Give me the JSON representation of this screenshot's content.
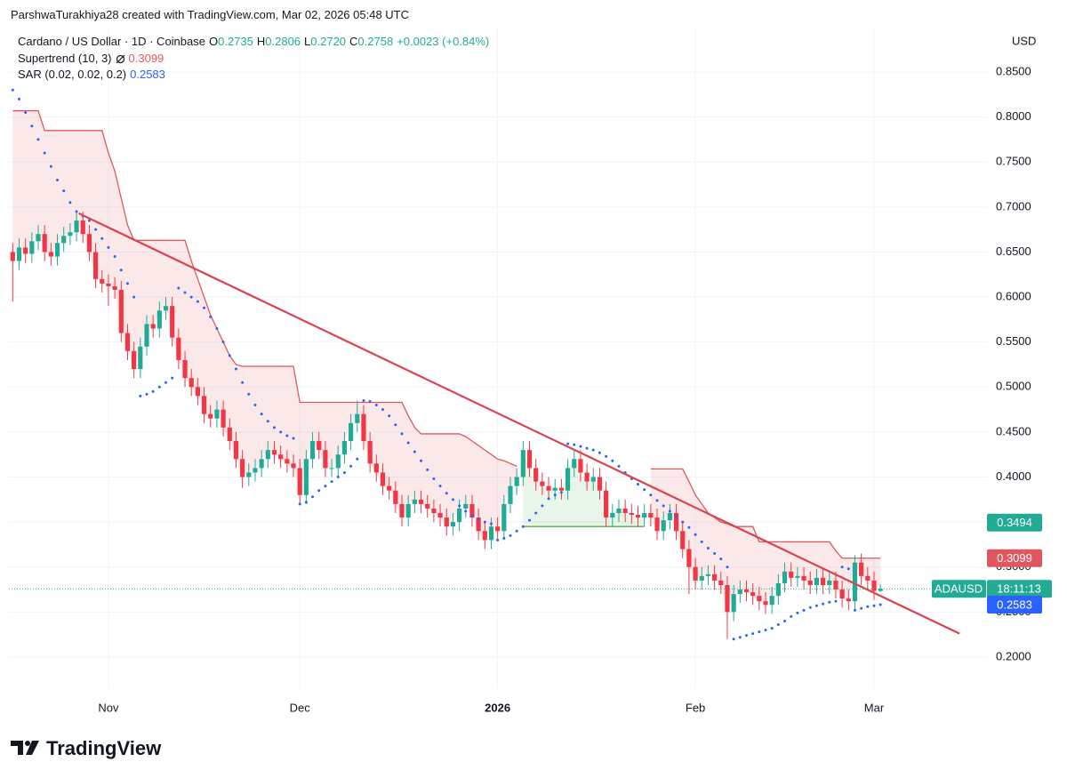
{
  "header": {
    "attribution": "ParshwaTurakhiya28 created with TradingView.com, Mar 02, 2026 05:48 UTC"
  },
  "chart_data": {
    "type": "candlestick",
    "symbol": "Cardano / US Dollar · 1D · Coinbase",
    "ohlc_labels": [
      "O",
      "H",
      "L",
      "C"
    ],
    "last_value_labels": [
      "0.2735",
      "0.2806",
      "0.2720",
      "0.2758"
    ],
    "change": "+0.0023 (+0.84%)",
    "currency": "USD",
    "up_color": "#22ab94",
    "down_color": "#f23645",
    "open": [
      0.65,
      0.64,
      0.655,
      0.648,
      0.662,
      0.67,
      0.65,
      0.645,
      0.66,
      0.668,
      0.672,
      0.685,
      0.67,
      0.65,
      0.62,
      0.615,
      0.612,
      0.608,
      0.56,
      0.54,
      0.52,
      0.545,
      0.57,
      0.565,
      0.585,
      0.59,
      0.555,
      0.53,
      0.51,
      0.5,
      0.49,
      0.47,
      0.465,
      0.475,
      0.455,
      0.44,
      0.42,
      0.4,
      0.405,
      0.41,
      0.42,
      0.43,
      0.425,
      0.42,
      0.415,
      0.41,
      0.38,
      0.42,
      0.44,
      0.43,
      0.41,
      0.41,
      0.425,
      0.44,
      0.46,
      0.47,
      0.44,
      0.415,
      0.405,
      0.39,
      0.385,
      0.37,
      0.355,
      0.37,
      0.375,
      0.37,
      0.365,
      0.36,
      0.355,
      0.345,
      0.35,
      0.365,
      0.37,
      0.355,
      0.34,
      0.33,
      0.345,
      0.34,
      0.37,
      0.39,
      0.4,
      0.43,
      0.41,
      0.395,
      0.39,
      0.385,
      0.388,
      0.385,
      0.41,
      0.42,
      0.405,
      0.395,
      0.4,
      0.385,
      0.355,
      0.36,
      0.365,
      0.36,
      0.358,
      0.355,
      0.36,
      0.355,
      0.34,
      0.352,
      0.36,
      0.34,
      0.32,
      0.3,
      0.285,
      0.29,
      0.292,
      0.285,
      0.28,
      0.25,
      0.27,
      0.275,
      0.272,
      0.268,
      0.262,
      0.258,
      0.268,
      0.282,
      0.295,
      0.288,
      0.29,
      0.285,
      0.28,
      0.288,
      0.28,
      0.285,
      0.275,
      0.265,
      0.262,
      0.305,
      0.29,
      0.285,
      0.2735
    ],
    "high": [
      0.66,
      0.665,
      0.665,
      0.672,
      0.68,
      0.68,
      0.66,
      0.67,
      0.678,
      0.682,
      0.695,
      0.695,
      0.68,
      0.66,
      0.63,
      0.625,
      0.622,
      0.618,
      0.57,
      0.55,
      0.555,
      0.58,
      0.58,
      0.595,
      0.6,
      0.6,
      0.565,
      0.54,
      0.52,
      0.51,
      0.5,
      0.48,
      0.485,
      0.485,
      0.465,
      0.45,
      0.43,
      0.415,
      0.42,
      0.43,
      0.44,
      0.44,
      0.435,
      0.43,
      0.425,
      0.42,
      0.43,
      0.45,
      0.45,
      0.44,
      0.42,
      0.435,
      0.45,
      0.47,
      0.485,
      0.48,
      0.45,
      0.425,
      0.415,
      0.4,
      0.395,
      0.38,
      0.38,
      0.385,
      0.385,
      0.38,
      0.375,
      0.37,
      0.365,
      0.36,
      0.375,
      0.38,
      0.38,
      0.365,
      0.35,
      0.355,
      0.355,
      0.38,
      0.4,
      0.41,
      0.44,
      0.44,
      0.42,
      0.405,
      0.4,
      0.398,
      0.398,
      0.42,
      0.43,
      0.43,
      0.415,
      0.41,
      0.41,
      0.395,
      0.37,
      0.375,
      0.375,
      0.37,
      0.368,
      0.37,
      0.37,
      0.365,
      0.362,
      0.37,
      0.37,
      0.35,
      0.33,
      0.31,
      0.3,
      0.302,
      0.302,
      0.295,
      0.29,
      0.28,
      0.285,
      0.285,
      0.282,
      0.278,
      0.272,
      0.278,
      0.292,
      0.305,
      0.305,
      0.3,
      0.3,
      0.295,
      0.298,
      0.298,
      0.295,
      0.295,
      0.285,
      0.275,
      0.313,
      0.315,
      0.3,
      0.295,
      0.2806
    ],
    "low": [
      0.595,
      0.63,
      0.638,
      0.638,
      0.652,
      0.64,
      0.635,
      0.635,
      0.65,
      0.658,
      0.662,
      0.66,
      0.64,
      0.61,
      0.605,
      0.59,
      0.598,
      0.55,
      0.53,
      0.51,
      0.51,
      0.535,
      0.555,
      0.555,
      0.575,
      0.545,
      0.52,
      0.5,
      0.49,
      0.48,
      0.46,
      0.455,
      0.455,
      0.445,
      0.43,
      0.41,
      0.388,
      0.39,
      0.395,
      0.4,
      0.41,
      0.415,
      0.41,
      0.405,
      0.4,
      0.37,
      0.37,
      0.41,
      0.42,
      0.4,
      0.4,
      0.4,
      0.415,
      0.43,
      0.45,
      0.43,
      0.405,
      0.395,
      0.38,
      0.375,
      0.36,
      0.345,
      0.345,
      0.36,
      0.36,
      0.355,
      0.35,
      0.345,
      0.335,
      0.335,
      0.34,
      0.355,
      0.345,
      0.33,
      0.32,
      0.32,
      0.33,
      0.33,
      0.36,
      0.38,
      0.39,
      0.4,
      0.385,
      0.38,
      0.375,
      0.375,
      0.375,
      0.375,
      0.4,
      0.395,
      0.385,
      0.385,
      0.375,
      0.345,
      0.345,
      0.35,
      0.35,
      0.348,
      0.345,
      0.345,
      0.345,
      0.33,
      0.33,
      0.342,
      0.33,
      0.31,
      0.27,
      0.275,
      0.275,
      0.28,
      0.275,
      0.27,
      0.22,
      0.24,
      0.26,
      0.262,
      0.258,
      0.252,
      0.248,
      0.248,
      0.258,
      0.272,
      0.278,
      0.278,
      0.275,
      0.27,
      0.27,
      0.27,
      0.27,
      0.265,
      0.255,
      0.252,
      0.252,
      0.28,
      0.275,
      0.2635,
      0.272
    ],
    "close": [
      0.64,
      0.655,
      0.648,
      0.662,
      0.67,
      0.65,
      0.645,
      0.66,
      0.668,
      0.672,
      0.685,
      0.67,
      0.65,
      0.62,
      0.615,
      0.612,
      0.608,
      0.56,
      0.54,
      0.52,
      0.545,
      0.57,
      0.565,
      0.585,
      0.59,
      0.555,
      0.53,
      0.51,
      0.5,
      0.49,
      0.47,
      0.465,
      0.475,
      0.455,
      0.44,
      0.42,
      0.4,
      0.405,
      0.41,
      0.42,
      0.43,
      0.425,
      0.42,
      0.415,
      0.41,
      0.38,
      0.42,
      0.44,
      0.43,
      0.41,
      0.41,
      0.425,
      0.44,
      0.46,
      0.47,
      0.44,
      0.415,
      0.405,
      0.39,
      0.385,
      0.37,
      0.355,
      0.37,
      0.375,
      0.37,
      0.365,
      0.36,
      0.355,
      0.345,
      0.35,
      0.365,
      0.37,
      0.355,
      0.34,
      0.33,
      0.345,
      0.34,
      0.37,
      0.39,
      0.4,
      0.43,
      0.41,
      0.395,
      0.39,
      0.385,
      0.388,
      0.385,
      0.41,
      0.42,
      0.405,
      0.395,
      0.4,
      0.385,
      0.355,
      0.36,
      0.365,
      0.36,
      0.358,
      0.355,
      0.36,
      0.355,
      0.34,
      0.352,
      0.36,
      0.34,
      0.32,
      0.3,
      0.285,
      0.29,
      0.292,
      0.285,
      0.28,
      0.25,
      0.27,
      0.275,
      0.272,
      0.268,
      0.262,
      0.258,
      0.268,
      0.282,
      0.295,
      0.288,
      0.29,
      0.285,
      0.28,
      0.288,
      0.28,
      0.285,
      0.275,
      0.265,
      0.262,
      0.305,
      0.29,
      0.285,
      0.2735,
      0.2758
    ],
    "supertrend": {
      "name": "Supertrend (10, 3)",
      "up_color": "#4caf50",
      "down_color": "#e0575f",
      "values": [
        0.807,
        0.807,
        0.807,
        0.807,
        0.807,
        0.785,
        0.785,
        0.785,
        0.785,
        0.785,
        0.785,
        0.785,
        0.785,
        0.785,
        0.785,
        0.76,
        0.74,
        0.71,
        0.68,
        0.663,
        0.663,
        0.663,
        0.663,
        0.663,
        0.663,
        0.663,
        0.663,
        0.663,
        0.64,
        0.62,
        0.6,
        0.58,
        0.565,
        0.55,
        0.535,
        0.525,
        0.523,
        0.523,
        0.523,
        0.523,
        0.523,
        0.523,
        0.523,
        0.523,
        0.523,
        0.483,
        0.483,
        0.483,
        0.483,
        0.483,
        0.483,
        0.483,
        0.483,
        0.483,
        0.483,
        0.483,
        0.483,
        0.483,
        0.483,
        0.483,
        0.483,
        0.483,
        0.468,
        0.455,
        0.448,
        0.448,
        0.448,
        0.448,
        0.448,
        0.448,
        0.448,
        0.445,
        0.44,
        0.435,
        0.43,
        0.425,
        0.42,
        0.418,
        0.415,
        0.412,
        0.345,
        0.345,
        0.345,
        0.345,
        0.345,
        0.345,
        0.345,
        0.345,
        0.345,
        0.345,
        0.345,
        0.345,
        0.345,
        0.345,
        0.345,
        0.345,
        0.345,
        0.345,
        0.345,
        0.345,
        0.409,
        0.409,
        0.409,
        0.409,
        0.409,
        0.409,
        0.395,
        0.38,
        0.37,
        0.36,
        0.355,
        0.35,
        0.348,
        0.345,
        0.345,
        0.345,
        0.345,
        0.328,
        0.328,
        0.328,
        0.328,
        0.328,
        0.328,
        0.328,
        0.328,
        0.328,
        0.328,
        0.328,
        0.328,
        0.318,
        0.3099,
        0.3099,
        0.3099,
        0.3099,
        0.3099,
        0.3099,
        0.3099
      ]
    },
    "sar": {
      "name": "SAR (0.02, 0.02, 0.2)",
      "color": "#2962ff",
      "values": [
        0.83,
        0.82,
        0.805,
        0.79,
        0.775,
        0.76,
        0.745,
        0.73,
        0.718,
        0.705,
        0.695,
        0.69,
        0.685,
        0.675,
        0.665,
        0.655,
        0.645,
        0.63,
        0.615,
        0.6,
        0.49,
        0.492,
        0.495,
        0.5,
        0.505,
        0.51,
        0.61,
        0.605,
        0.6,
        0.595,
        0.588,
        0.578,
        0.565,
        0.55,
        0.535,
        0.52,
        0.505,
        0.492,
        0.48,
        0.47,
        0.462,
        0.455,
        0.45,
        0.446,
        0.443,
        0.37,
        0.372,
        0.378,
        0.385,
        0.39,
        0.395,
        0.4,
        0.405,
        0.412,
        0.42,
        0.485,
        0.484,
        0.48,
        0.475,
        0.468,
        0.458,
        0.448,
        0.438,
        0.428,
        0.418,
        0.408,
        0.398,
        0.39,
        0.382,
        0.375,
        0.368,
        0.362,
        0.357,
        0.353,
        0.35,
        0.348,
        0.33,
        0.332,
        0.335,
        0.34,
        0.345,
        0.352,
        0.36,
        0.368,
        0.376,
        0.38,
        0.383,
        0.437,
        0.436,
        0.434,
        0.432,
        0.43,
        0.427,
        0.423,
        0.418,
        0.412,
        0.405,
        0.398,
        0.392,
        0.386,
        0.38,
        0.374,
        0.368,
        0.362,
        0.356,
        0.35,
        0.344,
        0.336,
        0.328,
        0.321,
        0.315,
        0.309,
        0.3,
        0.22,
        0.222,
        0.224,
        0.226,
        0.228,
        0.23,
        0.232,
        0.236,
        0.24,
        0.245,
        0.249,
        0.252,
        0.255,
        0.257,
        0.259,
        0.261,
        0.262,
        0.3,
        0.298,
        0.252,
        0.254,
        0.256,
        0.257,
        0.2583
      ]
    },
    "trendline": {
      "x": [
        10.35,
        148.4
      ],
      "values": [
        0.693,
        0.226
      ],
      "color": "#d9434f"
    },
    "xlim": [
      -0.6,
      152.7
    ],
    "xticks": [
      {
        "value": 15,
        "label": "Nov"
      },
      {
        "value": 45,
        "label": "Dec"
      },
      {
        "value": 76,
        "label": "2026",
        "bold": true
      },
      {
        "value": 107,
        "label": "Feb"
      },
      {
        "value": 135,
        "label": "Mar"
      }
    ],
    "ylim": [
      0.1644,
      0.9004
    ],
    "yticks": [
      {
        "value": 0.2,
        "label": "0.2000"
      },
      {
        "value": 0.25,
        "label": "0.2500"
      },
      {
        "value": 0.3,
        "label": "0.3000"
      },
      {
        "value": 0.35,
        "label": "0.3500"
      },
      {
        "value": 0.4,
        "label": "0.4000"
      },
      {
        "value": 0.45,
        "label": "0.4500"
      },
      {
        "value": 0.5,
        "label": "0.5000"
      },
      {
        "value": 0.55,
        "label": "0.5500"
      },
      {
        "value": 0.6,
        "label": "0.6000"
      },
      {
        "value": 0.65,
        "label": "0.6500"
      },
      {
        "value": 0.7,
        "label": "0.7000"
      },
      {
        "value": 0.75,
        "label": "0.7500"
      },
      {
        "value": 0.8,
        "label": "0.8000"
      },
      {
        "value": 0.85,
        "label": "0.8500"
      }
    ],
    "grid": true,
    "price_labels": [
      {
        "value": 0.3494,
        "color": "#22ab94"
      }
    ],
    "symbol_badge": {
      "ticker": "ADAUSD",
      "countdown": "18:11:13",
      "color": "#22ab94"
    }
  },
  "footer": {
    "brand": "TradingView"
  }
}
